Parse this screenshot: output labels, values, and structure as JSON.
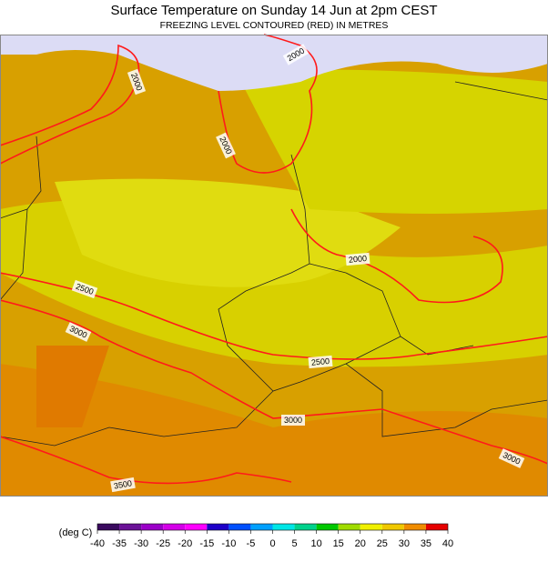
{
  "header": {
    "title": "Surface Temperature on Sunday 14 Jun at 2pm CEST",
    "subtitle": "FREEZING LEVEL CONTOURED (RED) IN METRES"
  },
  "map": {
    "contour_labels": [
      2000,
      2000,
      2000,
      2000,
      2500,
      2500,
      3000,
      3000,
      3000,
      3500
    ]
  },
  "colorbar": {
    "label": "(deg C)",
    "ticks": [
      -40,
      -35,
      -30,
      -25,
      -20,
      -15,
      -10,
      -5,
      0,
      5,
      10,
      15,
      20,
      25,
      30,
      35,
      40
    ],
    "colors": [
      "#3a0a5e",
      "#6b1297",
      "#9b00c8",
      "#d400e8",
      "#ff00ff",
      "#1e00c8",
      "#0050ff",
      "#00a0ff",
      "#00e6e6",
      "#00d28c",
      "#00c800",
      "#a0dc00",
      "#f0f000",
      "#f0c800",
      "#f08c00",
      "#e60000"
    ]
  }
}
